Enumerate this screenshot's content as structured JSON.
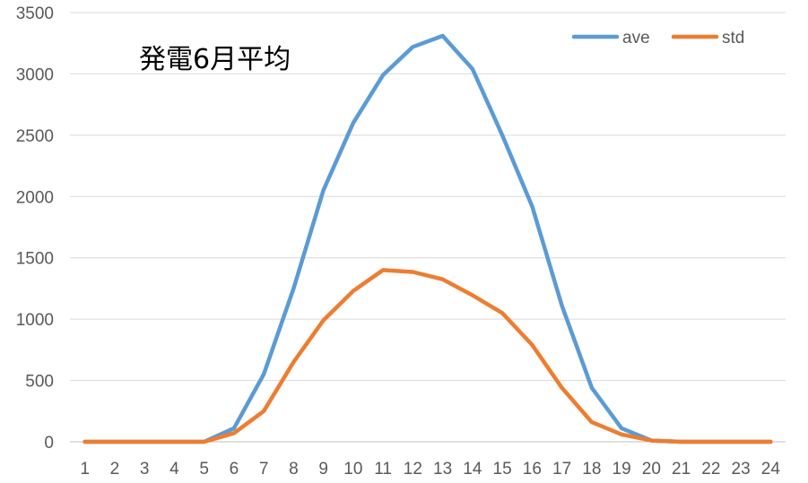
{
  "chart_data": {
    "type": "line",
    "title": "発電6月平均",
    "xlabel": "",
    "ylabel": "",
    "categories": [
      "1",
      "2",
      "3",
      "4",
      "5",
      "6",
      "7",
      "8",
      "9",
      "10",
      "11",
      "12",
      "13",
      "14",
      "15",
      "16",
      "17",
      "18",
      "19",
      "20",
      "21",
      "22",
      "23",
      "24"
    ],
    "ylim": [
      0,
      3500
    ],
    "yticks": [
      "0",
      "500",
      "1000",
      "1500",
      "2000",
      "2500",
      "3000",
      "3500"
    ],
    "grid": true,
    "legend_position": "top-right",
    "series": [
      {
        "name": "ave",
        "color": "#5B9BD5",
        "values": [
          0,
          0,
          0,
          0,
          0,
          110,
          550,
          1250,
          2050,
          2600,
          2990,
          3220,
          3310,
          3040,
          2500,
          1920,
          1110,
          440,
          110,
          10,
          0,
          0,
          0,
          0
        ]
      },
      {
        "name": "std",
        "color": "#ED7D31",
        "values": [
          0,
          0,
          0,
          0,
          0,
          70,
          250,
          650,
          990,
          1230,
          1400,
          1385,
          1325,
          1195,
          1050,
          790,
          440,
          160,
          60,
          10,
          0,
          0,
          0,
          0
        ]
      }
    ]
  }
}
